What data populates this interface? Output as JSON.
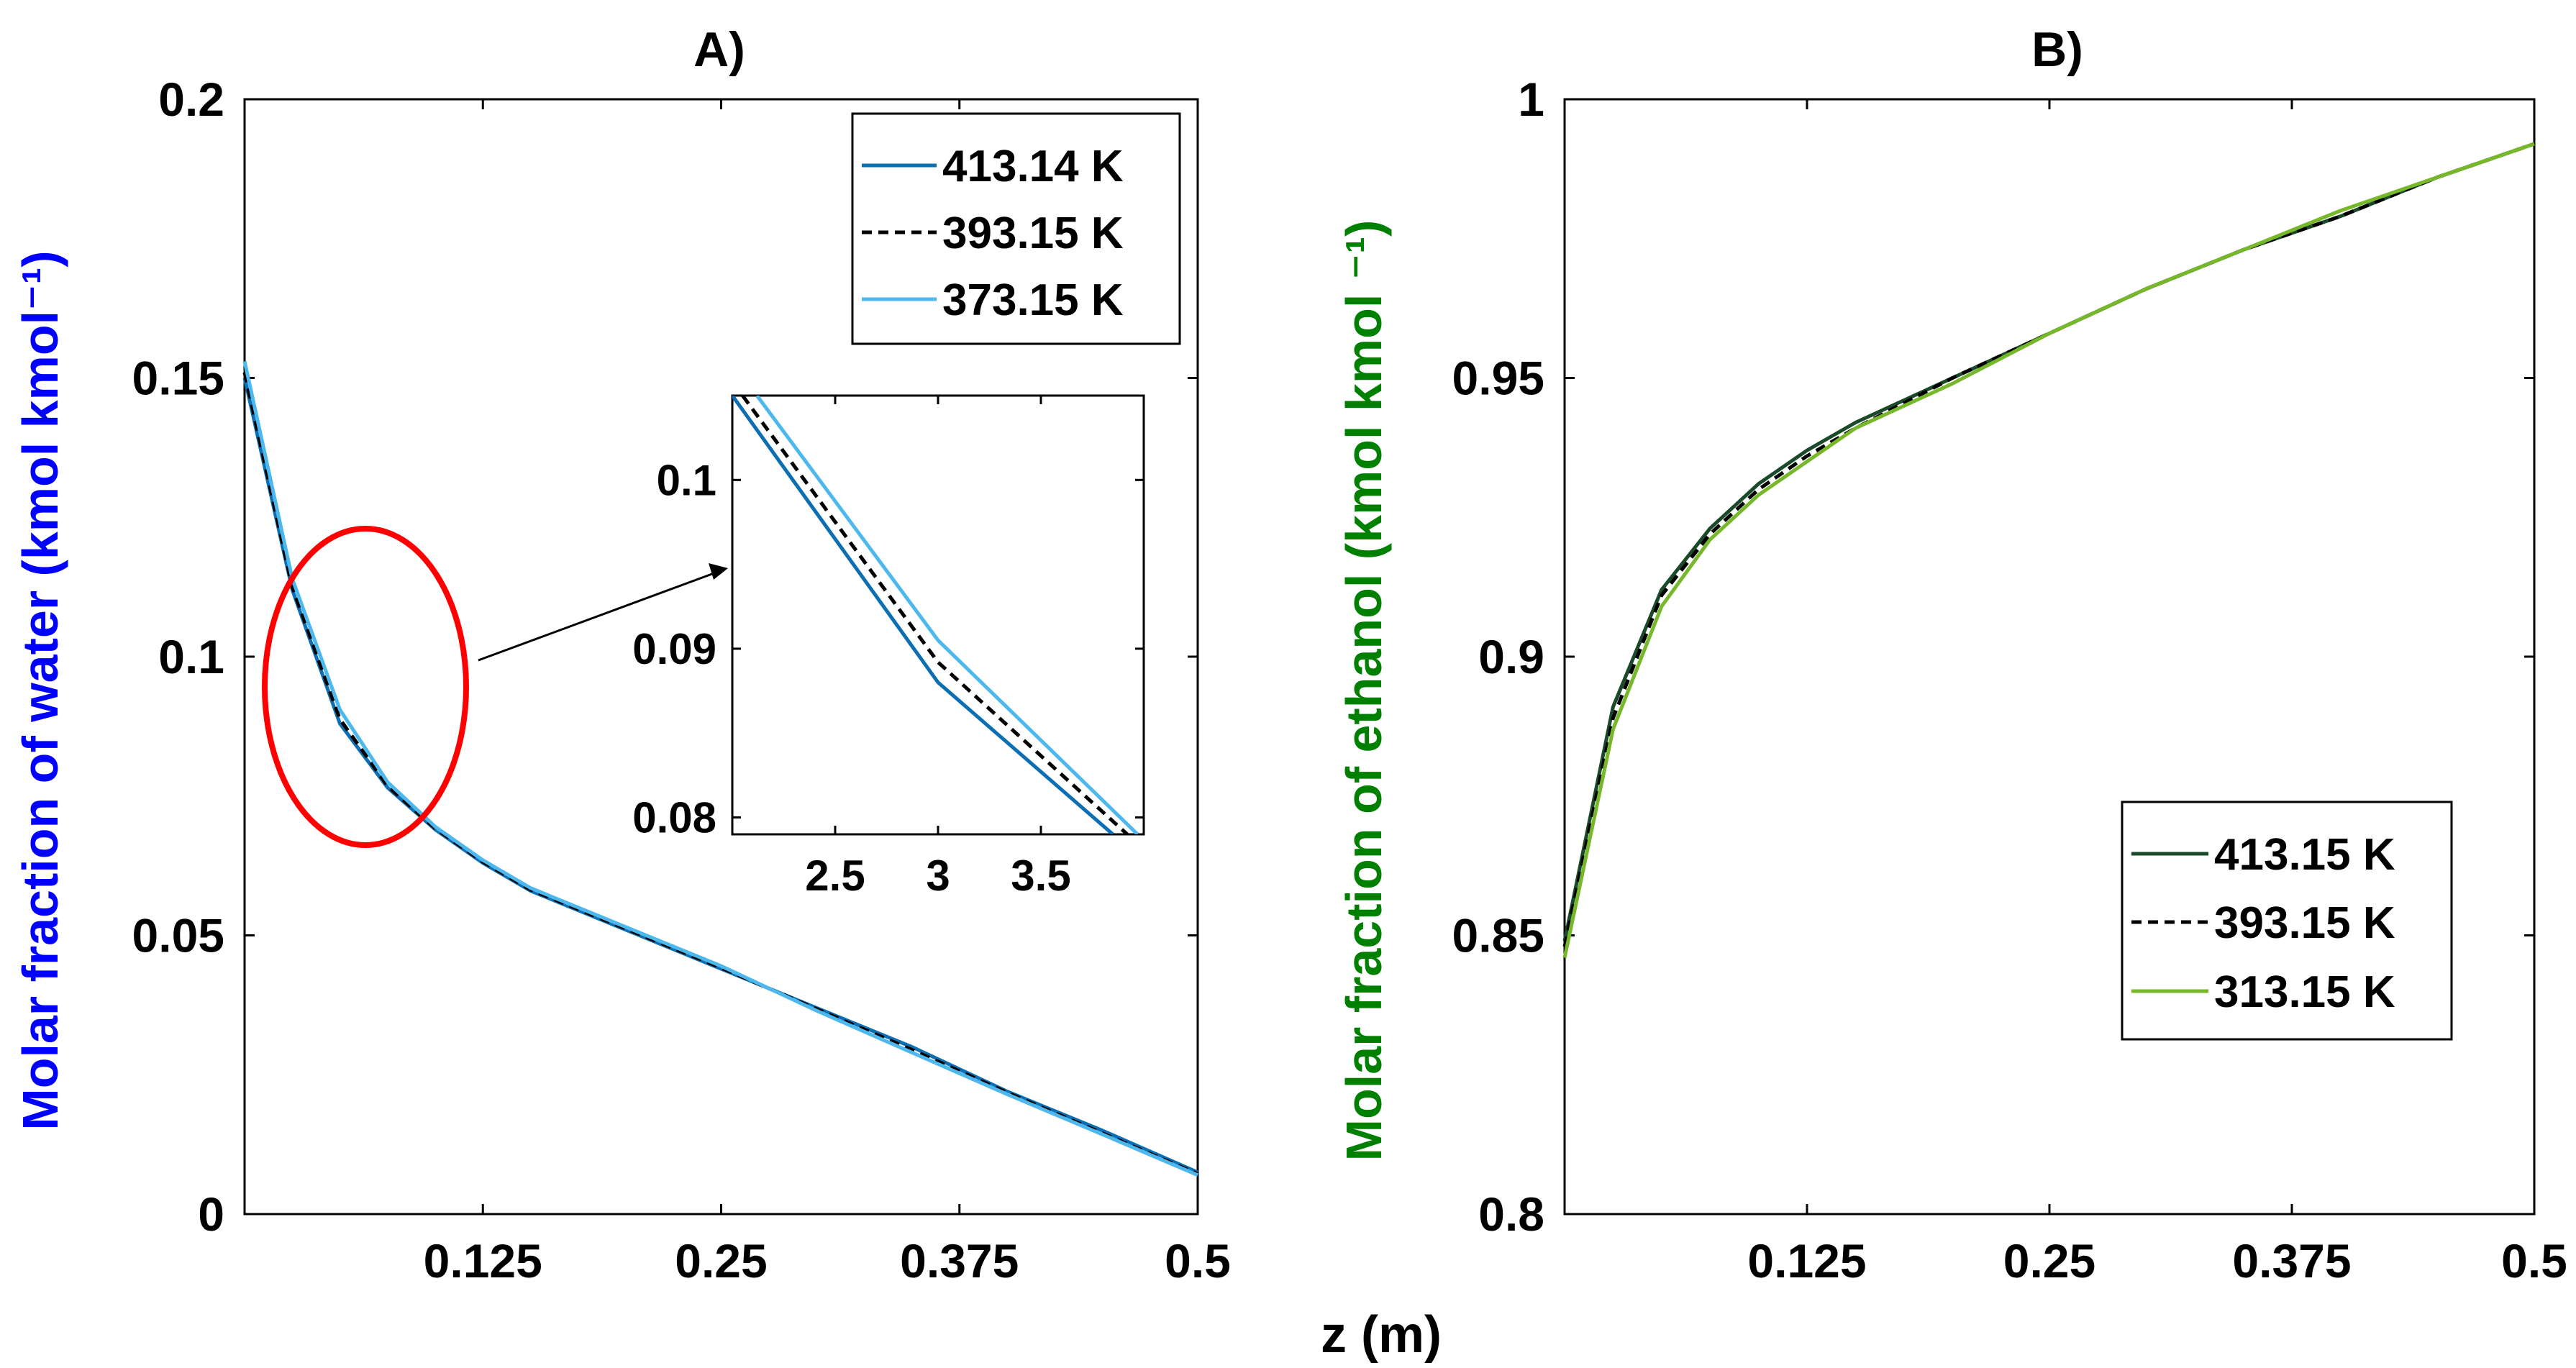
{
  "chart_data": [
    {
      "id": "A",
      "type": "line",
      "title": "A)",
      "ylabel": "Molar fraction of water (kmol kmol⁻¹)",
      "ylabel_color": "#0000ff",
      "xlim": [
        0,
        0.5
      ],
      "ylim": [
        0,
        0.2
      ],
      "xticks": [
        0.125,
        0.25,
        0.375,
        0.5
      ],
      "xtick_labels": [
        "0.125",
        "0.25",
        "0.375",
        "0.5"
      ],
      "yticks": [
        0,
        0.05,
        0.1,
        0.15,
        0.2
      ],
      "ytick_labels": [
        "0",
        "0.05",
        "0.1",
        "0.15",
        "0.2"
      ],
      "legend_position": "top-right",
      "series": [
        {
          "name": "413.14 K",
          "color": "#0c6fb3",
          "dash": "solid",
          "x": [
            0,
            0.025,
            0.05,
            0.075,
            0.1,
            0.125,
            0.15,
            0.2,
            0.25,
            0.3,
            0.35,
            0.4,
            0.45,
            0.5
          ],
          "y": [
            0.15,
            0.112,
            0.088,
            0.0765,
            0.069,
            0.063,
            0.058,
            0.051,
            0.044,
            0.037,
            0.03,
            0.022,
            0.015,
            0.0075
          ]
        },
        {
          "name": "393.15 K",
          "color": "#000000",
          "dash": "dashed",
          "x": [
            0,
            0.025,
            0.05,
            0.075,
            0.1,
            0.125,
            0.15,
            0.2,
            0.25,
            0.3,
            0.35,
            0.4,
            0.45,
            0.5
          ],
          "y": [
            0.151,
            0.1125,
            0.0888,
            0.0768,
            0.0692,
            0.0632,
            0.0582,
            0.0512,
            0.0442,
            0.0368,
            0.0295,
            0.0218,
            0.0145,
            0.0072
          ]
        },
        {
          "name": "373.15 K",
          "color": "#4db8ee",
          "dash": "solid",
          "x": [
            0,
            0.025,
            0.05,
            0.075,
            0.1,
            0.125,
            0.15,
            0.2,
            0.25,
            0.3,
            0.35,
            0.4,
            0.45,
            0.5
          ],
          "y": [
            0.153,
            0.114,
            0.0905,
            0.0775,
            0.0695,
            0.0635,
            0.0585,
            0.0515,
            0.0445,
            0.0365,
            0.029,
            0.0215,
            0.0143,
            0.007
          ]
        }
      ],
      "inset": {
        "xlim": [
          2.0,
          4.0
        ],
        "ylim": [
          0.079,
          0.105
        ],
        "xticks": [
          2.5,
          3,
          3.5
        ],
        "xtick_labels": [
          "2.5",
          "3",
          "3.5"
        ],
        "yticks": [
          0.08,
          0.09,
          0.1
        ],
        "ytick_labels": [
          "0.08",
          "0.09",
          "0.1"
        ],
        "series": [
          {
            "name": "413.14 K",
            "color": "#0c6fb3",
            "dash": "solid",
            "x": [
              2.0,
              3.0,
              3.85
            ],
            "y": [
              0.105,
              0.088,
              0.079
            ]
          },
          {
            "name": "393.15 K",
            "color": "#000000",
            "dash": "dashed",
            "x": [
              2.05,
              3.0,
              3.92
            ],
            "y": [
              0.105,
              0.0892,
              0.079
            ]
          },
          {
            "name": "373.15 K",
            "color": "#4db8ee",
            "dash": "solid",
            "x": [
              2.12,
              3.0,
              3.97
            ],
            "y": [
              0.105,
              0.0905,
              0.079
            ]
          }
        ]
      },
      "annotation": {
        "type": "ellipse-with-arrow",
        "color": "#ff0000",
        "target": "inset"
      }
    },
    {
      "id": "B",
      "type": "line",
      "title": "B)",
      "ylabel": "Molar fraction of ethanol (kmol kmol ⁻¹)",
      "ylabel_color": "#008000",
      "xlim": [
        0,
        0.5
      ],
      "ylim": [
        0.8,
        1.0
      ],
      "xticks": [
        0.125,
        0.25,
        0.375,
        0.5
      ],
      "xtick_labels": [
        "0.125",
        "0.25",
        "0.375",
        "0.5"
      ],
      "yticks": [
        0.8,
        0.85,
        0.9,
        0.95,
        1.0
      ],
      "ytick_labels": [
        "0.8",
        "0.85",
        "0.9",
        "0.95",
        "1"
      ],
      "legend_position": "bottom-right",
      "series": [
        {
          "name": "413.15 K",
          "color": "#1a4a2a",
          "dash": "solid",
          "x": [
            0,
            0.025,
            0.05,
            0.075,
            0.1,
            0.125,
            0.15,
            0.2,
            0.25,
            0.3,
            0.35,
            0.4,
            0.45,
            0.5
          ],
          "y": [
            0.849,
            0.891,
            0.912,
            0.923,
            0.931,
            0.937,
            0.942,
            0.95,
            0.958,
            0.966,
            0.973,
            0.979,
            0.986,
            0.992
          ]
        },
        {
          "name": "393.15 K",
          "color": "#000000",
          "dash": "dashed",
          "x": [
            0,
            0.025,
            0.05,
            0.075,
            0.1,
            0.125,
            0.15,
            0.2,
            0.25,
            0.3,
            0.35,
            0.4,
            0.45,
            0.5
          ],
          "y": [
            0.848,
            0.889,
            0.911,
            0.922,
            0.93,
            0.936,
            0.941,
            0.95,
            0.958,
            0.966,
            0.973,
            0.979,
            0.986,
            0.992
          ]
        },
        {
          "name": "313.15 K",
          "color": "#76b82a",
          "dash": "solid",
          "x": [
            0,
            0.025,
            0.05,
            0.075,
            0.1,
            0.125,
            0.15,
            0.2,
            0.25,
            0.3,
            0.35,
            0.4,
            0.45,
            0.5
          ],
          "y": [
            0.846,
            0.887,
            0.909,
            0.921,
            0.929,
            0.935,
            0.941,
            0.949,
            0.958,
            0.966,
            0.973,
            0.98,
            0.986,
            0.992
          ]
        }
      ]
    }
  ],
  "shared_xlabel": "z (m)"
}
